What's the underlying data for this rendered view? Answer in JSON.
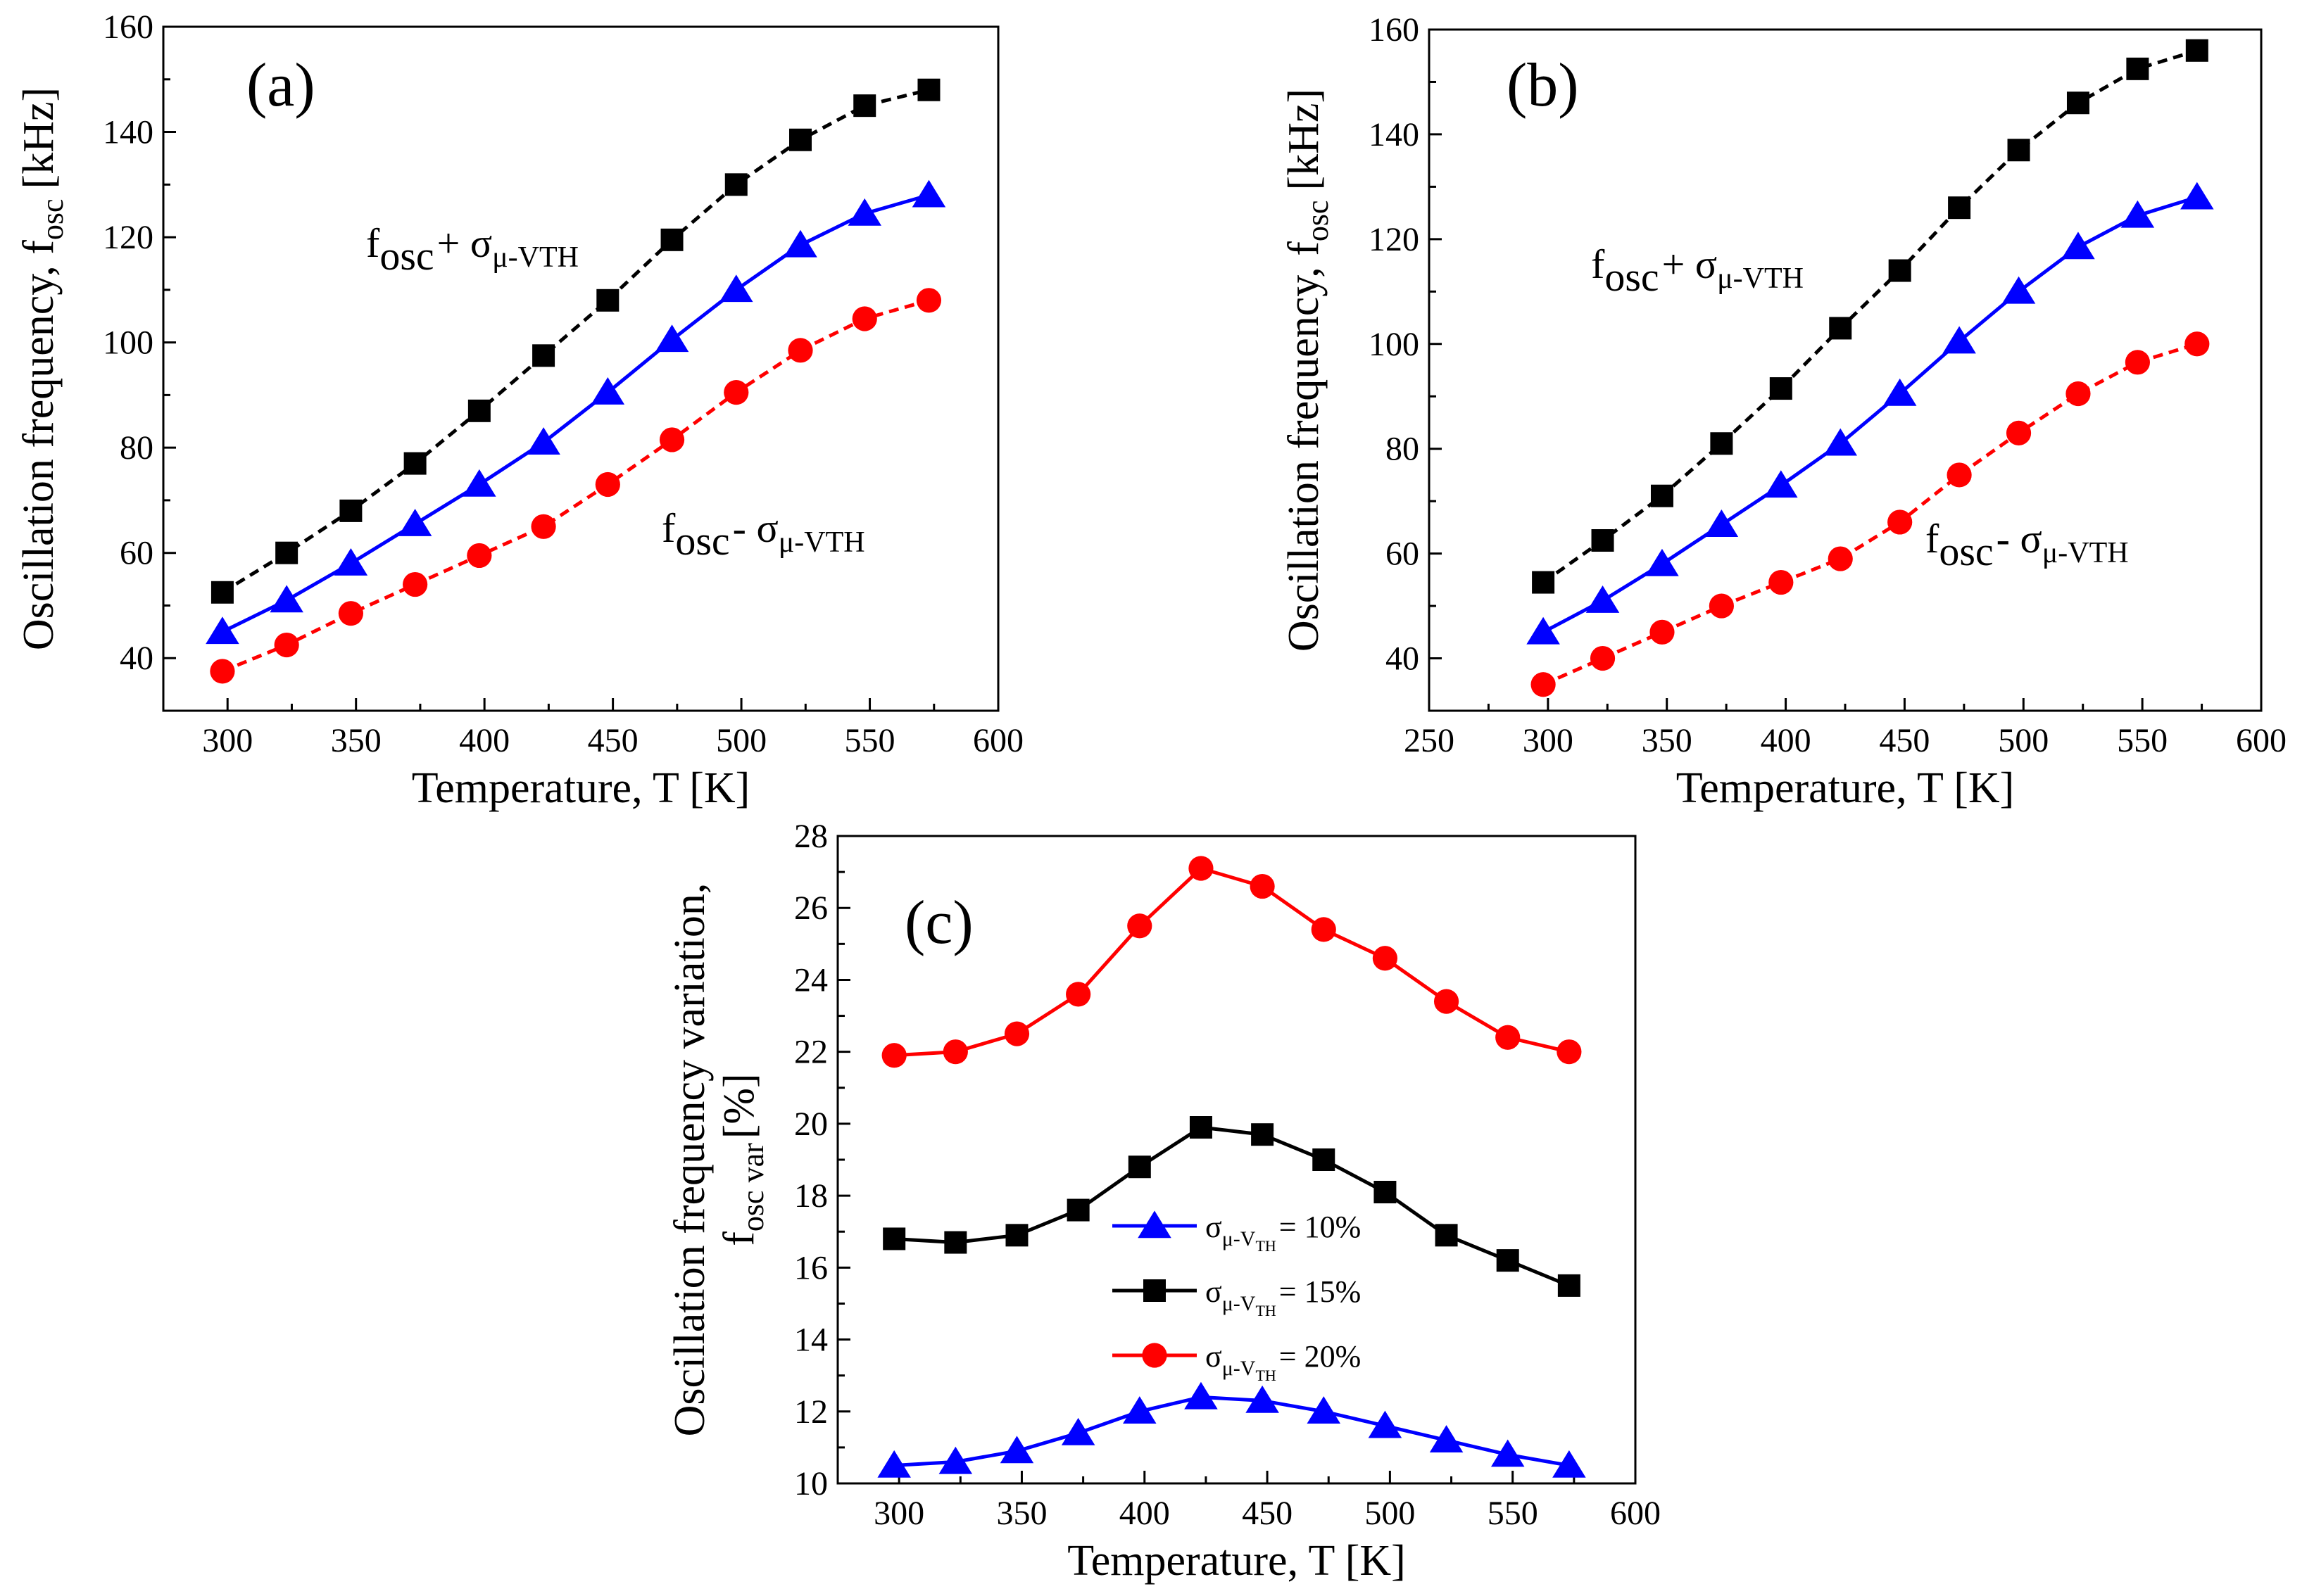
{
  "chart_data": [
    {
      "panel_label": "(a)",
      "type": "line",
      "xlabel": "Temperature, T [K]",
      "ylabel_main": "Oscillation frequency, f",
      "ylabel_sub": "osc",
      "ylabel_unit": "[kHz]",
      "xlim": [
        275,
        600
      ],
      "ylim": [
        30,
        160
      ],
      "xticks": [
        300,
        350,
        400,
        450,
        500,
        550,
        600
      ],
      "yticks": [
        40,
        60,
        80,
        100,
        120,
        140,
        160
      ],
      "x": [
        298,
        323,
        348,
        373,
        398,
        423,
        448,
        473,
        498,
        523,
        548,
        573
      ],
      "series": [
        {
          "name": "f_osc + σ_μ-VTH",
          "color": "#000000",
          "marker": "square",
          "dashed": true,
          "values": [
            52.5,
            60,
            68,
            77,
            87,
            97.5,
            108,
            119.5,
            130,
            138.5,
            145,
            148
          ]
        },
        {
          "name": "f_osc",
          "color": "#0000ff",
          "marker": "triangle",
          "dashed": false,
          "values": [
            45,
            51,
            58,
            65.5,
            73,
            81,
            90.5,
            100.5,
            110,
            118.5,
            124.5,
            128
          ]
        },
        {
          "name": "f_osc - σ_μ-VTH",
          "color": "#ff0000",
          "marker": "circle",
          "dashed": true,
          "values": [
            37.5,
            42.5,
            48.5,
            54,
            59.5,
            65,
            73,
            81.5,
            90.5,
            98.5,
            104.5,
            108
          ]
        }
      ],
      "annotations": [
        {
          "main": "f",
          "sub": "osc",
          "op": "+ σ",
          "sigma_sub": "μ-VTH"
        },
        {
          "main": "f",
          "sub": "osc",
          "op": "- σ",
          "sigma_sub": "μ-VTH"
        }
      ]
    },
    {
      "panel_label": "(b)",
      "type": "line",
      "xlabel": "Temperature, T [K]",
      "ylabel_main": "Oscillation frequency, f",
      "ylabel_sub": "osc",
      "ylabel_unit": "[kHz]",
      "xlim": [
        250,
        600
      ],
      "ylim": [
        30,
        160
      ],
      "xticks": [
        250,
        300,
        350,
        400,
        450,
        500,
        550,
        600
      ],
      "yticks": [
        40,
        60,
        80,
        100,
        120,
        140,
        160
      ],
      "x": [
        298,
        323,
        348,
        373,
        398,
        423,
        448,
        473,
        498,
        523,
        548,
        573
      ],
      "series": [
        {
          "name": "f_osc + σ_μ-VTH",
          "color": "#000000",
          "marker": "square",
          "dashed": true,
          "values": [
            54.5,
            62.5,
            71,
            81,
            91.5,
            103,
            114,
            126,
            137,
            146,
            152.5,
            156
          ]
        },
        {
          "name": "f_osc",
          "color": "#0000ff",
          "marker": "triangle",
          "dashed": false,
          "values": [
            45,
            51,
            58,
            65.5,
            73,
            81,
            90.5,
            100.5,
            110,
            118.5,
            124.5,
            128
          ]
        },
        {
          "name": "f_osc - σ_μ-VTH",
          "color": "#ff0000",
          "marker": "circle",
          "dashed": true,
          "values": [
            35,
            40,
            45,
            50,
            54.5,
            59,
            66,
            75,
            83,
            90.5,
            96.5,
            100
          ]
        }
      ],
      "annotations": [
        {
          "main": "f",
          "sub": "osc",
          "op": "+ σ",
          "sigma_sub": "μ-VTH"
        },
        {
          "main": "f",
          "sub": "osc",
          "op": "- σ",
          "sigma_sub": "μ-VTH"
        }
      ]
    },
    {
      "panel_label": "(c)",
      "type": "line",
      "xlabel": "Temperature, T [K]",
      "ylabel_line1": "Oscillation frequency variation,",
      "ylabel_main": "f",
      "ylabel_sub": "osc var",
      "ylabel_unit": "[%]",
      "xlim": [
        275,
        600
      ],
      "ylim": [
        10,
        28
      ],
      "xticks": [
        300,
        350,
        400,
        450,
        500,
        550,
        600
      ],
      "yticks": [
        10,
        12,
        14,
        16,
        18,
        20,
        22,
        24,
        26,
        28
      ],
      "x": [
        298,
        323,
        348,
        373,
        398,
        423,
        448,
        473,
        498,
        523,
        548,
        573
      ],
      "series": [
        {
          "name": "σ_μ-VTH = 10%",
          "color": "#0000ff",
          "marker": "triangle",
          "dashed": false,
          "values": [
            10.5,
            10.6,
            10.9,
            11.4,
            12.0,
            12.4,
            12.3,
            12.0,
            11.6,
            11.2,
            10.8,
            10.5
          ]
        },
        {
          "name": "σ_μ-VTH = 15%",
          "color": "#000000",
          "marker": "square",
          "dashed": false,
          "values": [
            16.8,
            16.7,
            16.9,
            17.6,
            18.8,
            19.9,
            19.7,
            19.0,
            18.1,
            16.9,
            16.2,
            15.5
          ]
        },
        {
          "name": "σ_μ-VTH = 20%",
          "color": "#ff0000",
          "marker": "circle",
          "dashed": false,
          "values": [
            21.9,
            22.0,
            22.5,
            23.6,
            25.5,
            27.1,
            26.6,
            25.4,
            24.6,
            23.4,
            22.4,
            22.0
          ]
        }
      ],
      "legend": [
        {
          "sigma": "σ",
          "sub": "μ-V",
          "subsub": "TH",
          "value": "= 10%"
        },
        {
          "sigma": "σ",
          "sub": "μ-V",
          "subsub": "TH",
          "value": "= 15%"
        },
        {
          "sigma": "σ",
          "sub": "μ-V",
          "subsub": "TH",
          "value": "= 20%"
        }
      ]
    }
  ]
}
